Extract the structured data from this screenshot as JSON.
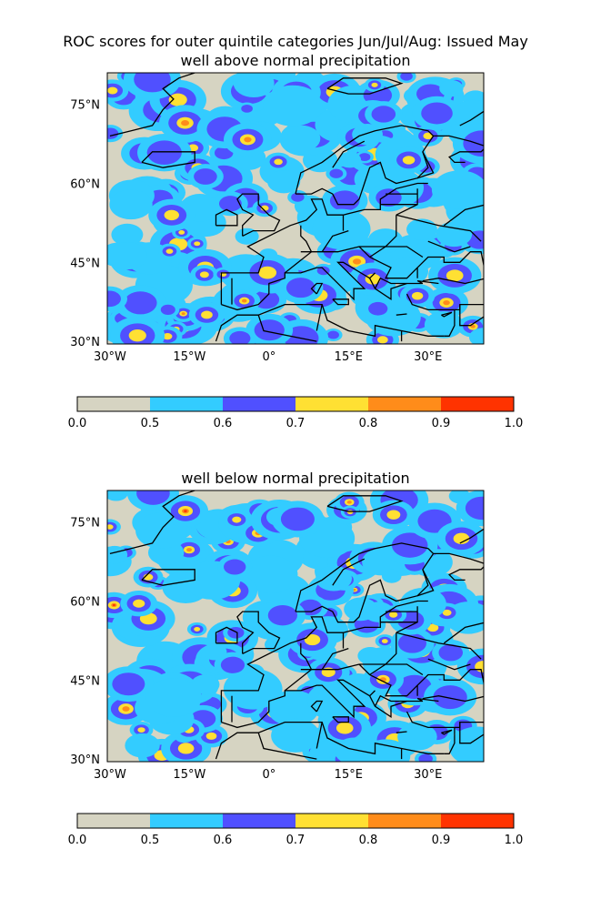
{
  "figure": {
    "title_line1": "ROC scores for outer quintile categories Jun/Jul/Aug: Issued May"
  },
  "panels": [
    {
      "subtitle": "well above normal precipitation",
      "seed": 17,
      "x_ticks": [
        "30°W",
        "15°W",
        "0°",
        "15°E",
        "30°E"
      ],
      "y_ticks": [
        "75°N",
        "60°N",
        "45°N",
        "30°N"
      ]
    },
    {
      "subtitle": "well below normal precipitation",
      "seed": 53,
      "x_ticks": [
        "30°W",
        "15°W",
        "0°",
        "15°E",
        "30°E"
      ],
      "y_ticks": [
        "75°N",
        "60°N",
        "45°N",
        "30°N"
      ]
    }
  ],
  "colorbar": {
    "labels": [
      "0.0",
      "0.5",
      "0.6",
      "0.7",
      "0.8",
      "0.9",
      "1.0"
    ],
    "colors": [
      "#d6d4c2",
      "#33ccff",
      "#5050ff",
      "#ffe033",
      "#ff8c1a",
      "#ff3300"
    ]
  }
}
